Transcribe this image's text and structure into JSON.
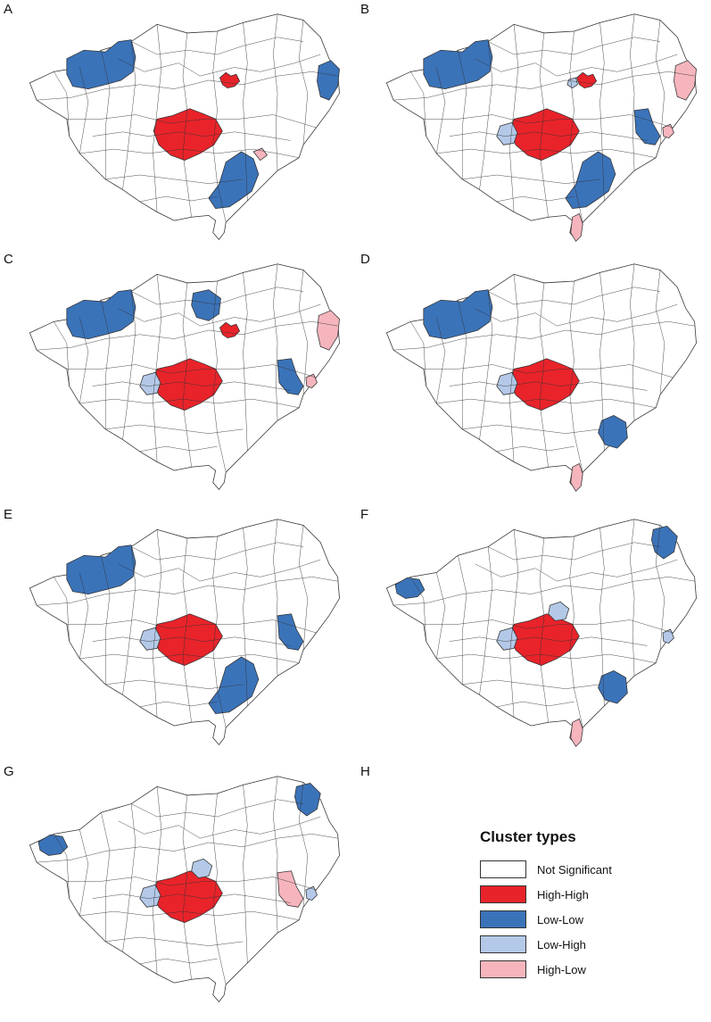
{
  "colors": {
    "not_significant": "#ffffff",
    "high_high": "#e8232a",
    "low_low": "#3b73b9",
    "low_high": "#b4c9e8",
    "high_low": "#f6b5bd",
    "border": "#333333"
  },
  "panels": [
    {
      "letter": "A",
      "clusters": [
        {
          "region": "northwest",
          "type": "low_low"
        },
        {
          "region": "north-center",
          "type": "high_high"
        },
        {
          "region": "northeast-edge",
          "type": "low_low"
        },
        {
          "region": "center",
          "type": "high_high"
        },
        {
          "region": "south-center",
          "type": "low_low"
        },
        {
          "region": "south-center-east",
          "type": "high_low"
        }
      ]
    },
    {
      "letter": "B",
      "clusters": [
        {
          "region": "northwest",
          "type": "low_low"
        },
        {
          "region": "north-center",
          "type": "high_high"
        },
        {
          "region": "north-center-west",
          "type": "low_high"
        },
        {
          "region": "northeast-edge",
          "type": "high_low"
        },
        {
          "region": "east",
          "type": "low_low"
        },
        {
          "region": "east-small",
          "type": "high_low"
        },
        {
          "region": "center",
          "type": "high_high"
        },
        {
          "region": "center-west",
          "type": "low_high"
        },
        {
          "region": "south-center",
          "type": "low_low"
        },
        {
          "region": "south-tip",
          "type": "high_low"
        }
      ]
    },
    {
      "letter": "C",
      "clusters": [
        {
          "region": "northwest",
          "type": "low_low"
        },
        {
          "region": "north",
          "type": "low_low"
        },
        {
          "region": "north-center",
          "type": "high_high"
        },
        {
          "region": "northeast-edge",
          "type": "high_low"
        },
        {
          "region": "east",
          "type": "low_low"
        },
        {
          "region": "east-small",
          "type": "high_low"
        },
        {
          "region": "center",
          "type": "high_high"
        },
        {
          "region": "center-west",
          "type": "low_high"
        }
      ]
    },
    {
      "letter": "D",
      "clusters": [
        {
          "region": "northwest",
          "type": "low_low"
        },
        {
          "region": "center",
          "type": "high_high"
        },
        {
          "region": "center-west",
          "type": "low_high"
        },
        {
          "region": "south-east",
          "type": "low_low"
        },
        {
          "region": "south-tip",
          "type": "high_low"
        }
      ]
    },
    {
      "letter": "E",
      "clusters": [
        {
          "region": "northwest",
          "type": "low_low"
        },
        {
          "region": "east",
          "type": "low_low"
        },
        {
          "region": "center",
          "type": "high_high"
        },
        {
          "region": "center-west",
          "type": "low_high"
        },
        {
          "region": "south-center",
          "type": "low_low"
        }
      ]
    },
    {
      "letter": "F",
      "clusters": [
        {
          "region": "west",
          "type": "low_low"
        },
        {
          "region": "northeast",
          "type": "low_low"
        },
        {
          "region": "east-small",
          "type": "low_high"
        },
        {
          "region": "center",
          "type": "high_high"
        },
        {
          "region": "center-west",
          "type": "low_high"
        },
        {
          "region": "center-north",
          "type": "low_high"
        },
        {
          "region": "south-east",
          "type": "low_low"
        },
        {
          "region": "south-tip",
          "type": "high_low"
        }
      ]
    },
    {
      "letter": "G",
      "clusters": [
        {
          "region": "west",
          "type": "low_low"
        },
        {
          "region": "northeast",
          "type": "low_low"
        },
        {
          "region": "east",
          "type": "high_low"
        },
        {
          "region": "east-small",
          "type": "low_high"
        },
        {
          "region": "center",
          "type": "high_high"
        },
        {
          "region": "center-west",
          "type": "low_high"
        },
        {
          "region": "center-north",
          "type": "low_high"
        }
      ]
    },
    {
      "letter": "H",
      "clusters": []
    }
  ],
  "legend": {
    "title": "Cluster types",
    "items": [
      {
        "key": "not_significant",
        "label": "Not Significant"
      },
      {
        "key": "high_high",
        "label": "High-High"
      },
      {
        "key": "low_low",
        "label": "Low-Low"
      },
      {
        "key": "low_high",
        "label": "Low-High"
      },
      {
        "key": "high_low",
        "label": "High-Low"
      }
    ]
  }
}
